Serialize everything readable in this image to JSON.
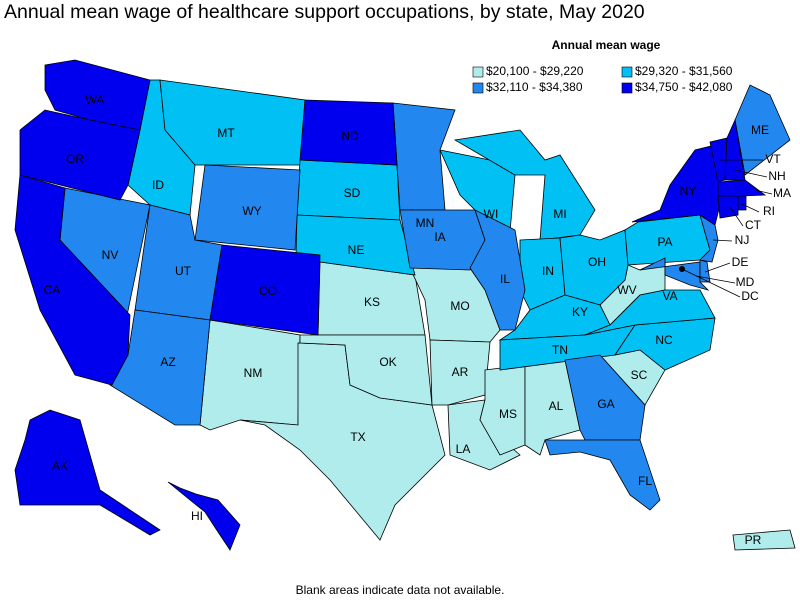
{
  "title": "Annual mean wage of healthcare support occupations, by state, May 2020",
  "legend": {
    "title": "Annual mean wage",
    "items": [
      {
        "label": "$20,100 - $29,220",
        "color": "#b0ecec",
        "states": [
          "NM",
          "TX",
          "KS",
          "OK",
          "MO",
          "AR",
          "LA",
          "MS",
          "AL",
          "SC",
          "WV",
          "PR"
        ]
      },
      {
        "label": "$29,320 - $31,560",
        "color": "#00c0f4",
        "states": [
          "ID",
          "MT",
          "SD",
          "NE",
          "WI",
          "MI",
          "IN",
          "OH",
          "KY",
          "TN",
          "NC",
          "VA",
          "PA"
        ]
      },
      {
        "label": "$32,110 - $34,380",
        "color": "#2288f0",
        "states": [
          "NV",
          "UT",
          "AZ",
          "WY",
          "MN",
          "IA",
          "IL",
          "GA",
          "FL",
          "ME",
          "NJ",
          "MD",
          "DE"
        ]
      },
      {
        "label": "$34,750 - $42,080",
        "color": "#0000ee",
        "states": [
          "WA",
          "OR",
          "CA",
          "AK",
          "HI",
          "ND",
          "CO",
          "NY",
          "VT",
          "NH",
          "MA",
          "CT",
          "RI",
          "DC"
        ]
      }
    ]
  },
  "footnote": "Blank areas indicate data not available."
}
